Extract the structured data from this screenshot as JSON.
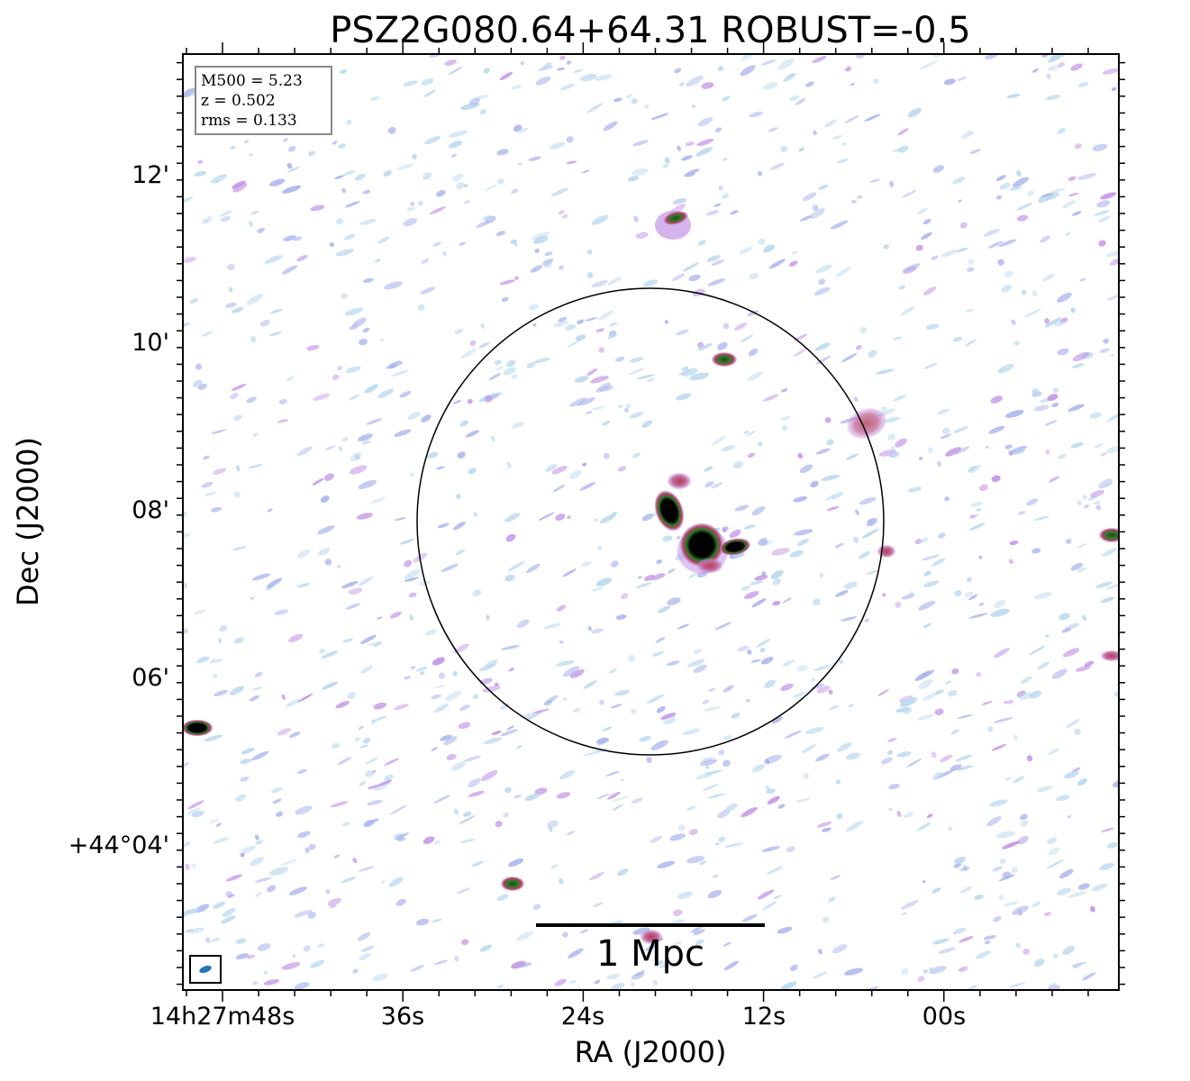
{
  "chart_data": {
    "type": "image",
    "title": "PSZ2G080.64+64.31 ROBUST=-0.5",
    "xlabel": "RA (J2000)",
    "ylabel": "Dec (J2000)",
    "x_ticks": [
      "14h27m48s",
      "36s",
      "24s",
      "12s",
      "00s"
    ],
    "y_ticks": [
      "+44°04'",
      "06'",
      "08'",
      "10'",
      "12'"
    ],
    "info_box": [
      "M500 = 5.23",
      "z = 0.502",
      "rms = 0.133"
    ],
    "scale_bar": "1 Mpc",
    "colors": {
      "noise_light": "#b9d8ee",
      "noise_mid": "#a9b4ec",
      "noise_violet": "#c394e6",
      "source_red": "#b0405a",
      "source_green": "#2f7a2a",
      "source_core": "#000000",
      "circle": "#000000",
      "beam": "#1f77b4"
    }
  }
}
